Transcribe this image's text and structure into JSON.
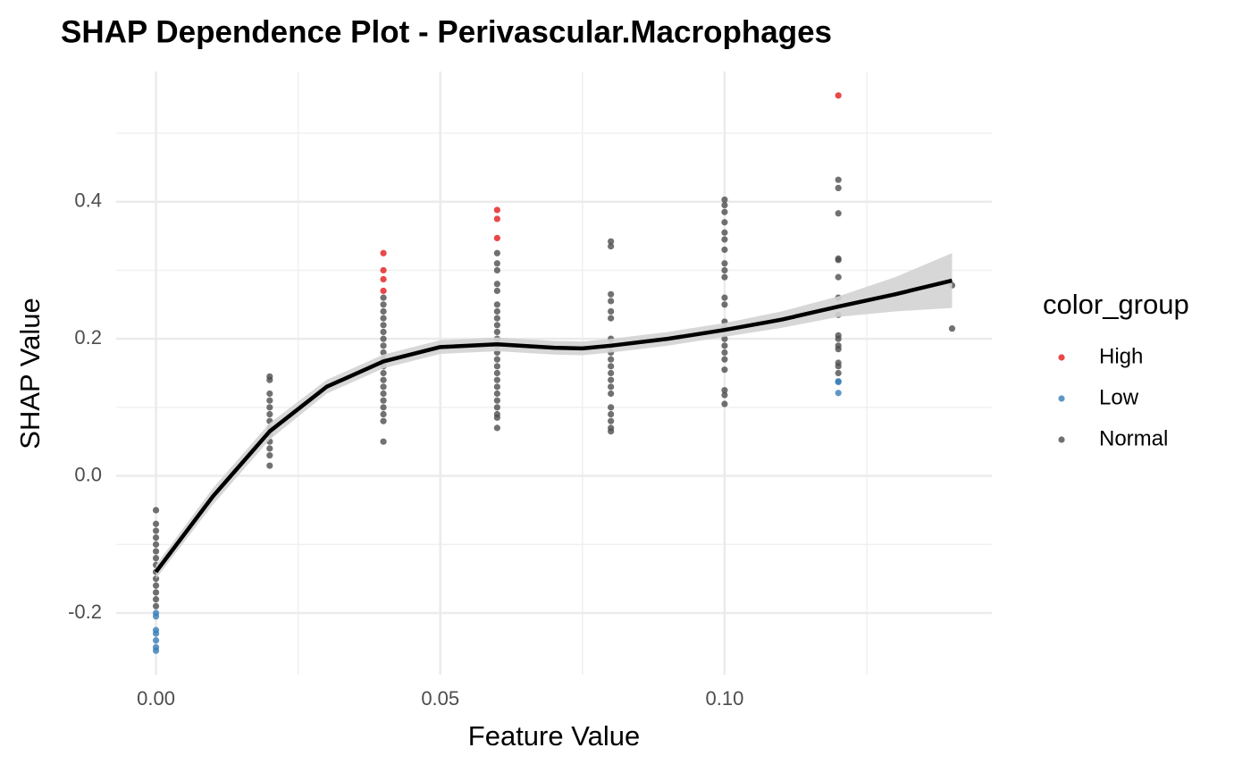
{
  "chart_data": {
    "type": "scatter",
    "title": "SHAP Dependence Plot - Perivascular.Macrophages",
    "x_label": "Feature Value",
    "y_label": "SHAP Value",
    "legend_title": "color_group",
    "legend_position": "right",
    "grid": true,
    "xlim": [
      -0.007,
      0.147
    ],
    "ylim": [
      -0.29,
      0.59
    ],
    "xticks": [
      {
        "value": 0,
        "label": "0.00"
      },
      {
        "value": 0.05,
        "label": "0.05"
      },
      {
        "value": 0.1,
        "label": "0.10"
      }
    ],
    "yticks": [
      -0.2,
      {
        "value": 0,
        "label": "0.0"
      },
      0.2,
      0.4
    ],
    "x_minor_grid": [
      0.025,
      0.075,
      0.125
    ],
    "y_minor_grid": [
      -0.1,
      0.1,
      0.3,
      0.5
    ],
    "series": [
      {
        "name": "High",
        "color": "#e41a1c",
        "x": [
          0.04,
          0.04,
          0.04,
          0.04,
          0.06,
          0.06,
          0.06,
          0.12
        ],
        "y": [
          0.325,
          0.3,
          0.287,
          0.27,
          0.388,
          0.375,
          0.347,
          0.555
        ]
      },
      {
        "name": "Low",
        "color": "#377eb8",
        "x": [
          0,
          0,
          0,
          0,
          0,
          0,
          0,
          0.12,
          0.12,
          0.12
        ],
        "y": [
          -0.2,
          -0.205,
          -0.225,
          -0.23,
          -0.24,
          -0.25,
          -0.255,
          0.138,
          0.137,
          0.121
        ]
      },
      {
        "name": "Normal",
        "color": "#4d4d4d",
        "x": [
          0,
          0,
          0,
          0,
          0,
          0,
          0,
          0,
          0,
          0,
          0,
          0,
          0,
          0,
          0.02,
          0.02,
          0.02,
          0.02,
          0.02,
          0.02,
          0.02,
          0.02,
          0.02,
          0.02,
          0.02,
          0.02,
          0.02,
          0.04,
          0.04,
          0.04,
          0.04,
          0.04,
          0.04,
          0.04,
          0.04,
          0.04,
          0.04,
          0.04,
          0.04,
          0.04,
          0.04,
          0.04,
          0.04,
          0.04,
          0.04,
          0.04,
          0.04,
          0.06,
          0.06,
          0.06,
          0.06,
          0.06,
          0.06,
          0.06,
          0.06,
          0.06,
          0.06,
          0.06,
          0.06,
          0.06,
          0.06,
          0.06,
          0.06,
          0.06,
          0.06,
          0.06,
          0.06,
          0.06,
          0.06,
          0.06,
          0.06,
          0.08,
          0.08,
          0.08,
          0.08,
          0.08,
          0.08,
          0.08,
          0.08,
          0.08,
          0.08,
          0.08,
          0.08,
          0.08,
          0.08,
          0.08,
          0.08,
          0.08,
          0.08,
          0.08,
          0.08,
          0.1,
          0.1,
          0.1,
          0.1,
          0.1,
          0.1,
          0.1,
          0.1,
          0.1,
          0.1,
          0.1,
          0.1,
          0.1,
          0.1,
          0.1,
          0.1,
          0.1,
          0.1,
          0.1,
          0.1,
          0.1,
          0.1,
          0.12,
          0.12,
          0.12,
          0.12,
          0.12,
          0.12,
          0.12,
          0.12,
          0.12,
          0.12,
          0.12,
          0.12,
          0.12,
          0.12,
          0.12,
          0.14,
          0.14
        ],
        "y": [
          -0.05,
          -0.07,
          -0.08,
          -0.09,
          -0.1,
          -0.11,
          -0.12,
          -0.13,
          -0.14,
          -0.15,
          -0.16,
          -0.17,
          -0.18,
          -0.19,
          0.145,
          0.14,
          0.12,
          0.11,
          0.1,
          0.09,
          0.08,
          0.07,
          0.06,
          0.05,
          0.04,
          0.03,
          0.015,
          0.26,
          0.25,
          0.24,
          0.23,
          0.22,
          0.21,
          0.2,
          0.19,
          0.18,
          0.17,
          0.16,
          0.15,
          0.14,
          0.13,
          0.12,
          0.11,
          0.1,
          0.09,
          0.08,
          0.05,
          0.325,
          0.31,
          0.3,
          0.28,
          0.27,
          0.25,
          0.24,
          0.23,
          0.22,
          0.21,
          0.2,
          0.19,
          0.18,
          0.17,
          0.16,
          0.15,
          0.14,
          0.13,
          0.12,
          0.11,
          0.1,
          0.09,
          0.085,
          0.07,
          0.342,
          0.335,
          0.265,
          0.255,
          0.24,
          0.23,
          0.2,
          0.19,
          0.18,
          0.17,
          0.16,
          0.15,
          0.14,
          0.13,
          0.12,
          0.1,
          0.09,
          0.08,
          0.07,
          0.065,
          0.403,
          0.395,
          0.385,
          0.37,
          0.355,
          0.345,
          0.33,
          0.31,
          0.3,
          0.29,
          0.26,
          0.25,
          0.225,
          0.215,
          0.2,
          0.19,
          0.18,
          0.17,
          0.155,
          0.125,
          0.118,
          0.105,
          0.432,
          0.42,
          0.383,
          0.317,
          0.315,
          0.29,
          0.26,
          0.235,
          0.205,
          0.2,
          0.19,
          0.185,
          0.165,
          0.16,
          0.15,
          0.278,
          0.215
        ]
      }
    ],
    "smooth": {
      "color": "#000000",
      "band_color": "#d3d3d3",
      "x": [
        0,
        0.01,
        0.02,
        0.03,
        0.04,
        0.05,
        0.06,
        0.07,
        0.075,
        0.08,
        0.09,
        0.1,
        0.11,
        0.12,
        0.13,
        0.14
      ],
      "y": [
        -0.14,
        -0.03,
        0.065,
        0.13,
        0.167,
        0.188,
        0.192,
        0.187,
        0.186,
        0.19,
        0.2,
        0.213,
        0.228,
        0.247,
        0.265,
        0.285
      ],
      "lower": [
        -0.15,
        -0.042,
        0.053,
        0.12,
        0.157,
        0.178,
        0.182,
        0.177,
        0.176,
        0.18,
        0.19,
        0.203,
        0.216,
        0.232,
        0.24,
        0.245
      ],
      "upper": [
        -0.13,
        -0.018,
        0.077,
        0.14,
        0.177,
        0.198,
        0.202,
        0.197,
        0.196,
        0.2,
        0.21,
        0.223,
        0.24,
        0.262,
        0.29,
        0.325
      ]
    }
  }
}
